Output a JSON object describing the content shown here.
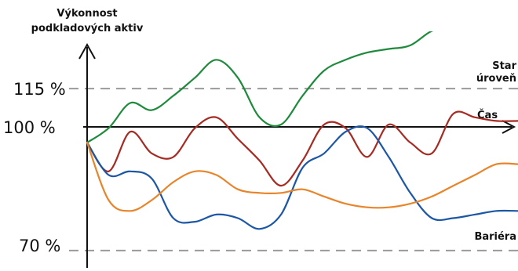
{
  "chart_data": {
    "type": "line",
    "ylabel_lines": [
      "Výkonnost",
      "podkladových aktiv"
    ],
    "xlabel": "Čas",
    "ylim": [
      63,
      137
    ],
    "grid": false,
    "ref_lines": [
      {
        "value": 115,
        "tick_label": "115 %",
        "label_lines": [
          "Star",
          "úroveň"
        ],
        "color": "#9a9a9a"
      },
      {
        "value": 70,
        "tick_label": "70 %",
        "label_lines": [
          "Bariéra"
        ],
        "color": "#9a9a9a"
      }
    ],
    "axis_tick": {
      "value": 100,
      "label": "100 %"
    },
    "x": [
      0,
      0.05,
      0.1,
      0.15,
      0.2,
      0.25,
      0.3,
      0.35,
      0.4,
      0.45,
      0.5,
      0.55,
      0.6,
      0.65,
      0.7,
      0.75,
      0.8,
      0.85,
      0.9,
      0.95,
      1
    ],
    "series": [
      {
        "color": "#1e8a3c",
        "values": [
          100,
          104,
          111,
          109,
          113,
          118,
          123,
          118,
          107,
          105,
          113,
          120,
          123,
          125,
          126,
          127,
          131,
          132,
          132,
          133,
          133
        ]
      },
      {
        "color": "#a62a22",
        "values": [
          100,
          92,
          103,
          97,
          96,
          104,
          107,
          101,
          95,
          88,
          95,
          105,
          104,
          96,
          105,
          100,
          97,
          108,
          107,
          106,
          106
        ]
      },
      {
        "color": "#1c57a5",
        "values": [
          100,
          91,
          92,
          90,
          79,
          78,
          80,
          79,
          76,
          80,
          93,
          97,
          103,
          104,
          96,
          86,
          79,
          79,
          80,
          81,
          81
        ]
      },
      {
        "color": "#e8842a",
        "values": [
          100,
          84,
          81,
          84,
          89,
          92,
          91,
          87,
          86,
          86,
          87,
          85,
          83,
          82,
          82,
          83,
          85,
          88,
          91,
          94,
          94
        ]
      }
    ]
  }
}
